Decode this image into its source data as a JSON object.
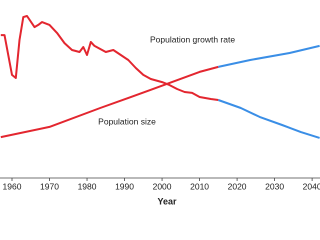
{
  "chart_data": {
    "type": "line",
    "x_label": "Year",
    "annotations": [
      "Population growth rate",
      "Population size"
    ],
    "xlim": [
      1956.8,
      2042.1
    ],
    "xticks": [
      1960,
      1970,
      1980,
      1990,
      2000,
      2010,
      2020,
      2030,
      2040
    ],
    "ylim": [
      0,
      100
    ],
    "series": [
      {
        "color": "#e3262f",
        "x": [
          1957,
          1958,
          1960,
          1961,
          1962,
          1963,
          1964,
          1966,
          1967,
          1968,
          1970,
          1972,
          1974,
          1976,
          1978,
          1979,
          1980,
          1981,
          1982,
          1985,
          1987,
          1989,
          1991,
          1993,
          1995,
          1997,
          2000,
          2002,
          2004,
          2006,
          2008,
          2010,
          2013,
          2015
        ],
        "values": [
          80.3,
          80.3,
          57.9,
          56.2,
          77.5,
          90.4,
          91,
          84.8,
          86,
          87.6,
          86,
          81.5,
          75.8,
          71.9,
          70.8,
          73.6,
          69.1,
          76.4,
          74.2,
          70.8,
          71.9,
          69.1,
          66.3,
          61.8,
          57.9,
          55.6,
          53.9,
          52.2,
          50,
          48.3,
          47.8,
          45.5,
          44.4,
          43.8
        ]
      },
      {
        "color": "#3a8ee6",
        "x": [
          2015,
          2021,
          2026,
          2032,
          2037,
          2042
        ],
        "values": [
          43.8,
          39.3,
          34.3,
          29.8,
          25.8,
          22.5
        ]
      },
      {
        "color": "#e3262f",
        "x": [
          1957,
          1970,
          1983.5,
          1996.8,
          2010,
          2015
        ],
        "values": [
          23,
          28.7,
          39.3,
          49.4,
          59.6,
          62.4
        ]
      },
      {
        "color": "#3a8ee6",
        "x": [
          2015,
          2023.5,
          2034,
          2042
        ],
        "values": [
          62.4,
          66.3,
          70.2,
          74.2
        ]
      }
    ]
  }
}
